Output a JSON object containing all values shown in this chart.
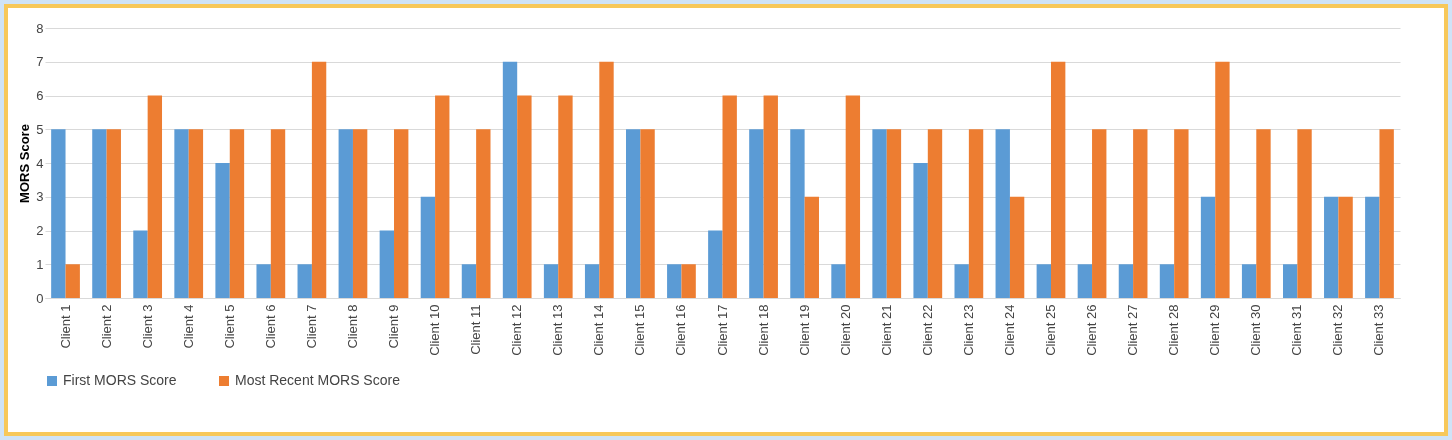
{
  "chart_data": {
    "type": "bar",
    "ylabel": "MORS Score",
    "categories": [
      "Client 1",
      "Client 2",
      "Client 3",
      "Client 4",
      "Client 5",
      "Client 6",
      "Client 7",
      "Client 8",
      "Client 9",
      "Client 10",
      "Client 11",
      "Client 12",
      "Client 13",
      "Client 14",
      "Client 15",
      "Client 16",
      "Client 17",
      "Client 18",
      "Client 19",
      "Client 20",
      "Client 21",
      "Client 22",
      "Client 23",
      "Client 24",
      "Client 25",
      "Client 26",
      "Client 27",
      "Client 28",
      "Client 29",
      "Client 30",
      "Client 31",
      "Client 32",
      "Client 33"
    ],
    "series": [
      {
        "name": "First MORS Score",
        "color": "#5b9bd5",
        "values": [
          5,
          5,
          2,
          5,
          4,
          1,
          1,
          5,
          2,
          3,
          1,
          7,
          1,
          1,
          5,
          1,
          2,
          5,
          5,
          1,
          5,
          4,
          1,
          5,
          1,
          1,
          1,
          1,
          3,
          1,
          1,
          3,
          3
        ]
      },
      {
        "name": "Most Recent MORS Score",
        "color": "#ed7d31",
        "values": [
          1,
          5,
          6,
          5,
          5,
          5,
          7,
          5,
          5,
          6,
          5,
          6,
          6,
          7,
          5,
          1,
          6,
          6,
          3,
          6,
          5,
          5,
          5,
          3,
          7,
          5,
          5,
          5,
          7,
          5,
          5,
          3,
          5
        ]
      }
    ],
    "ylim": [
      0,
      8
    ],
    "yticks": [
      0,
      1,
      2,
      3,
      4,
      5,
      6,
      7,
      8
    ],
    "grid": "y",
    "legend": "bottom"
  }
}
